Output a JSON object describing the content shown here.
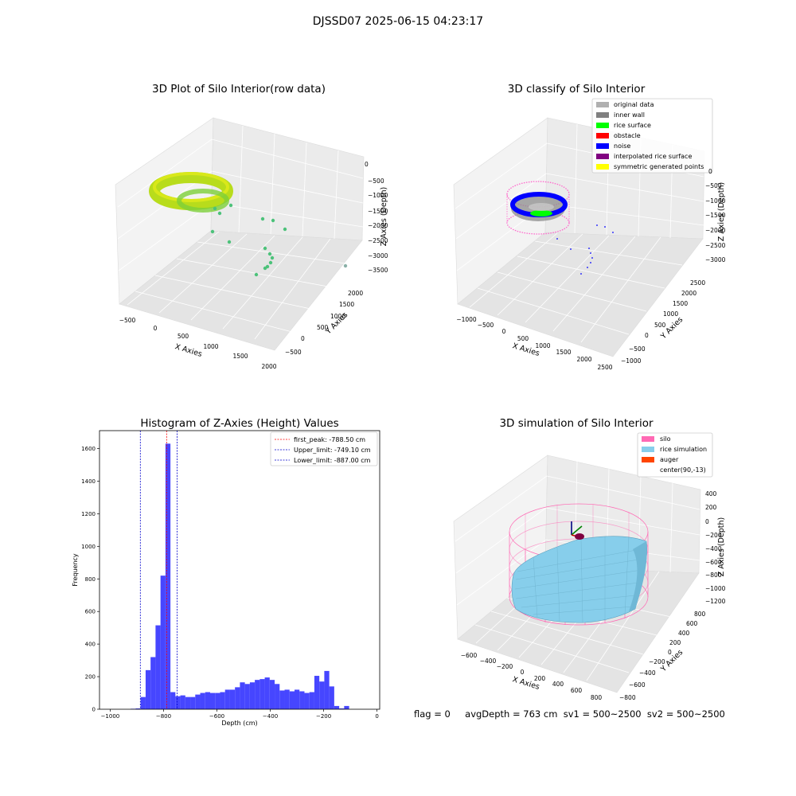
{
  "figure_title": "DJSSD07 2025-06-15 04:23:17",
  "footer": {
    "flag": "flag = 0",
    "stats": "avgDepth = 763 cm  sv1 = 500~2500  sv2 = 500~2500"
  },
  "colors": {
    "histogram_bar": "#4646ff",
    "first_peak": "#ff0000",
    "limits": "#0000cc",
    "silo": "#ff69b4",
    "rice_simulation": "#87ceeb",
    "auger": "#ff4500"
  },
  "chart_data": [
    {
      "type": "scatter3d",
      "title": "3D Plot of Silo Interior(row data)",
      "xlabel": "X Axies",
      "ylabel": "Y Axies",
      "zlabel": "Z Axies (Depth)",
      "x_ticks": [
        "−500",
        "0",
        "500",
        "1000",
        "1500",
        "2000"
      ],
      "y_ticks": [
        "−500",
        "0",
        "500",
        "1000",
        "1500",
        "2000"
      ],
      "z_ticks": [
        "0",
        "−500",
        "−1000",
        "−1500",
        "−2000",
        "−2500",
        "−3000",
        "−3500"
      ],
      "grid": true
    },
    {
      "type": "scatter3d",
      "title": "3D classify of Silo Interior",
      "xlabel": "X Axies",
      "ylabel": "Y Axies",
      "zlabel": "Z Axies (Depth)",
      "x_ticks": [
        "−1000",
        "−500",
        "0",
        "500",
        "1000",
        "1500",
        "2000",
        "2500"
      ],
      "y_ticks": [
        "−1000",
        "−500",
        "0",
        "500",
        "1000",
        "1500",
        "2000",
        "2500"
      ],
      "z_ticks": [
        "0",
        "−500",
        "−1000",
        "−1500",
        "−2000",
        "−2500",
        "−3000"
      ],
      "legend": [
        {
          "label": "original data",
          "color": "#b0b0b0"
        },
        {
          "label": "inner wall",
          "color": "#808080"
        },
        {
          "label": "rice surface",
          "color": "#00ff00"
        },
        {
          "label": "obstacle",
          "color": "#ff0000"
        },
        {
          "label": "noise",
          "color": "#0000ff"
        },
        {
          "label": "interpolated rice surface",
          "color": "#800080"
        },
        {
          "label": "symmetric generated points",
          "color": "#ffff00"
        }
      ],
      "legend_position": "top-right",
      "grid": true
    },
    {
      "type": "bar",
      "title": "Histogram of Z-Axies (Height) Values",
      "xlabel": "Depth (cm)",
      "ylabel": "Frequency",
      "xlim": [
        -1040,
        10
      ],
      "ylim": [
        0,
        1710
      ],
      "x_ticks": [
        {
          "value": -1000,
          "label": "−1000"
        },
        {
          "value": -800,
          "label": "−800"
        },
        {
          "value": -600,
          "label": "−600"
        },
        {
          "value": -400,
          "label": "−400"
        },
        {
          "value": -200,
          "label": "−200"
        },
        {
          "value": 0,
          "label": "0"
        }
      ],
      "y_ticks": [
        {
          "value": 0,
          "label": "0"
        },
        {
          "value": 200,
          "label": "200"
        },
        {
          "value": 400,
          "label": "400"
        },
        {
          "value": 600,
          "label": "600"
        },
        {
          "value": 800,
          "label": "800"
        },
        {
          "value": 1000,
          "label": "1000"
        },
        {
          "value": 1200,
          "label": "1200"
        },
        {
          "value": 1400,
          "label": "1400"
        },
        {
          "value": 1600,
          "label": "1600"
        }
      ],
      "bin_width": 18.6,
      "bins_start": [
        -923,
        -904.4,
        -885.8,
        -867.2,
        -848.6,
        -830,
        -811.4,
        -792.8,
        -774.2,
        -755.6,
        -737,
        -718.4,
        -699.8,
        -681.2,
        -662.6,
        -644,
        -625.4,
        -606.8,
        -588.2,
        -569.6,
        -551,
        -532.4,
        -513.8,
        -495.2,
        -476.6,
        -458,
        -439.4,
        -420.8,
        -402.2,
        -383.6,
        -365,
        -346.4,
        -327.8,
        -309.2,
        -290.6,
        -272,
        -253.4,
        -234.8,
        -216.2,
        -197.6,
        -179,
        -160.4,
        -141.8,
        -123.2,
        -104.6,
        -86,
        -67.4,
        -48.8,
        -30.2,
        -11.6
      ],
      "values": [
        3,
        5,
        75,
        240,
        320,
        515,
        820,
        1630,
        105,
        80,
        85,
        75,
        75,
        90,
        100,
        105,
        100,
        100,
        105,
        120,
        120,
        135,
        165,
        155,
        165,
        180,
        185,
        195,
        180,
        155,
        115,
        120,
        110,
        120,
        110,
        100,
        105,
        205,
        170,
        235,
        140,
        20,
        5,
        20,
        0,
        0,
        0,
        0,
        0,
        0
      ],
      "lines": [
        {
          "label": "first_peak: -788.50 cm",
          "x": -788.5,
          "color": "#ff0000"
        },
        {
          "label": "Upper_limit: -749.10 cm",
          "x": -749.1,
          "color": "#0000cc"
        },
        {
          "label": "Lower_limit: -887.00 cm",
          "x": -887.0,
          "color": "#0000cc"
        }
      ],
      "legend_position": "top-right"
    },
    {
      "type": "surface3d",
      "title": "3D simulation of Silo Interior",
      "xlabel": "X Axies",
      "ylabel": "Y Axies",
      "zlabel": "Z Axies (Depth)",
      "x_ticks": [
        "−600",
        "−400",
        "−200",
        "0",
        "200",
        "400",
        "600",
        "800"
      ],
      "y_ticks": [
        "−800",
        "−600",
        "−400",
        "−200",
        "0",
        "200",
        "400",
        "600",
        "800"
      ],
      "z_ticks": [
        "400",
        "200",
        "0",
        "−200",
        "−400",
        "−600",
        "−800",
        "−1000",
        "−1200"
      ],
      "legend": [
        {
          "label": "silo",
          "color": "#ff69b4"
        },
        {
          "label": "rice simulation",
          "color": "#87ceeb"
        },
        {
          "label": "auger",
          "color": "#ff4500"
        },
        {
          "label": "center(90,-13)",
          "color": "#ffffff"
        }
      ],
      "legend_position": "top-right",
      "grid": true
    }
  ]
}
